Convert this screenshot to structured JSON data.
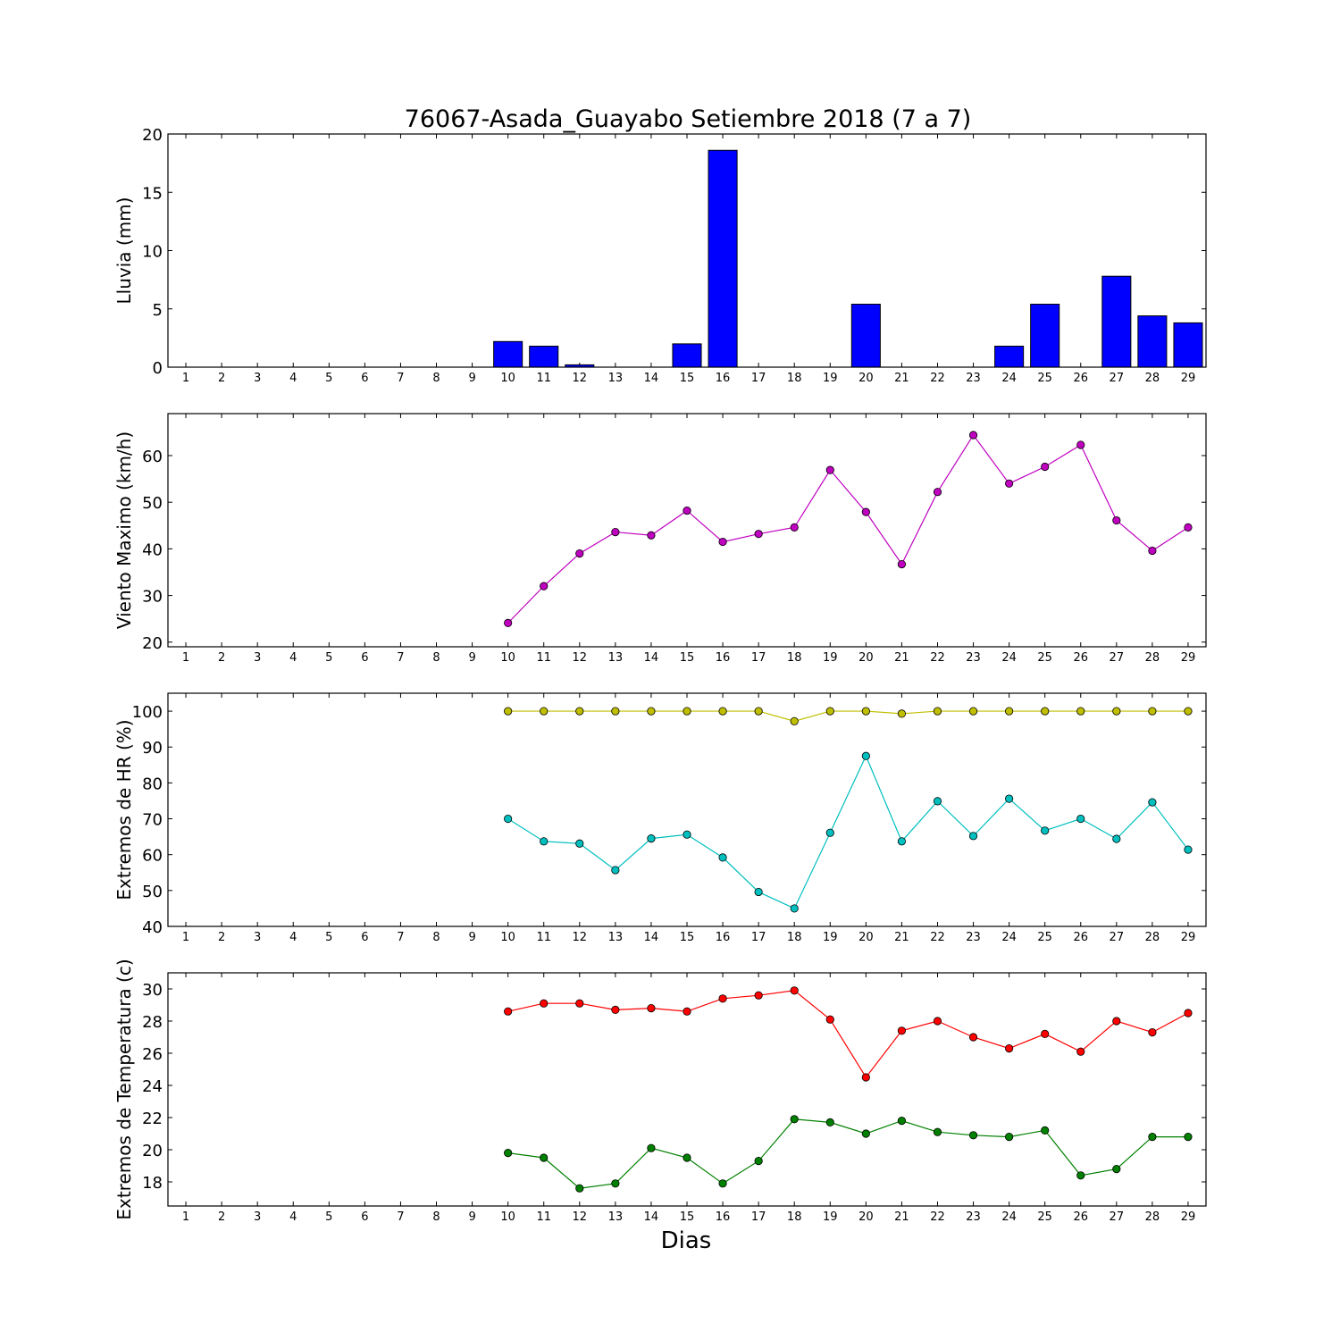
{
  "title": "76067-Asada_Guayabo Setiembre 2018  (7 a 7)",
  "xlabel": "Dias",
  "chart_data": [
    {
      "type": "bar",
      "ylabel": "Lluvia (mm)",
      "ylim": [
        0,
        20
      ],
      "yticks": [
        0,
        5,
        10,
        15,
        20
      ],
      "xlim": [
        0.5,
        29.5
      ],
      "categories": [
        1,
        2,
        3,
        4,
        5,
        6,
        7,
        8,
        9,
        10,
        11,
        12,
        13,
        14,
        15,
        16,
        17,
        18,
        19,
        20,
        21,
        22,
        23,
        24,
        25,
        26,
        27,
        28,
        29
      ],
      "series": [
        {
          "color": "#0000ff",
          "values": [
            0,
            0,
            0,
            0,
            0,
            0,
            0,
            0,
            0,
            2.2,
            1.8,
            0.2,
            0,
            0,
            2.0,
            18.6,
            0,
            0,
            0,
            5.4,
            0,
            0,
            0,
            1.8,
            5.4,
            0,
            7.8,
            4.4,
            3.8
          ]
        }
      ]
    },
    {
      "type": "line",
      "ylabel": "Viento Maximo (km/h)",
      "ylim": [
        19,
        69
      ],
      "yticks": [
        20,
        30,
        40,
        50,
        60
      ],
      "xlim": [
        0.5,
        29.5
      ],
      "categories": [
        1,
        2,
        3,
        4,
        5,
        6,
        7,
        8,
        9,
        10,
        11,
        12,
        13,
        14,
        15,
        16,
        17,
        18,
        19,
        20,
        21,
        22,
        23,
        24,
        25,
        26,
        27,
        28,
        29
      ],
      "series": [
        {
          "color": "#bf00bf",
          "x": [
            10,
            11,
            12,
            13,
            14,
            15,
            16,
            17,
            18,
            19,
            20,
            21,
            22,
            23,
            24,
            25,
            26,
            27,
            28,
            29
          ],
          "values": [
            24.1,
            32.0,
            39.0,
            43.6,
            42.9,
            48.2,
            41.5,
            43.2,
            44.6,
            56.9,
            47.9,
            36.7,
            52.2,
            64.4,
            54.0,
            57.6,
            62.3,
            46.1,
            39.6,
            44.6
          ]
        }
      ]
    },
    {
      "type": "line",
      "ylabel": "Extremos de HR (%)",
      "ylim": [
        40,
        105
      ],
      "yticks": [
        40,
        50,
        60,
        70,
        80,
        90,
        100
      ],
      "xlim": [
        0.5,
        29.5
      ],
      "categories": [
        1,
        2,
        3,
        4,
        5,
        6,
        7,
        8,
        9,
        10,
        11,
        12,
        13,
        14,
        15,
        16,
        17,
        18,
        19,
        20,
        21,
        22,
        23,
        24,
        25,
        26,
        27,
        28,
        29
      ],
      "series": [
        {
          "color": "#bfbf00",
          "x": [
            10,
            11,
            12,
            13,
            14,
            15,
            16,
            17,
            18,
            19,
            20,
            21,
            22,
            23,
            24,
            25,
            26,
            27,
            28,
            29
          ],
          "values": [
            100,
            100,
            100,
            100,
            100,
            100,
            100,
            100,
            97.2,
            100,
            100,
            99.3,
            100,
            100,
            100,
            100,
            100,
            100,
            100,
            100
          ]
        },
        {
          "color": "#00bfbf",
          "x": [
            10,
            11,
            12,
            13,
            14,
            15,
            16,
            17,
            18,
            19,
            20,
            21,
            22,
            23,
            24,
            25,
            26,
            27,
            28,
            29
          ],
          "values": [
            70.0,
            63.7,
            63.1,
            55.7,
            64.5,
            65.6,
            59.2,
            49.6,
            45.0,
            66.1,
            87.5,
            63.7,
            74.9,
            65.2,
            75.6,
            66.7,
            70.0,
            64.4,
            74.6,
            61.4
          ]
        }
      ]
    },
    {
      "type": "line",
      "ylabel": "Extremos de Temperatura (c)",
      "ylim": [
        16.5,
        31
      ],
      "yticks": [
        18,
        20,
        22,
        24,
        26,
        28,
        30
      ],
      "xlim": [
        0.5,
        29.5
      ],
      "categories": [
        1,
        2,
        3,
        4,
        5,
        6,
        7,
        8,
        9,
        10,
        11,
        12,
        13,
        14,
        15,
        16,
        17,
        18,
        19,
        20,
        21,
        22,
        23,
        24,
        25,
        26,
        27,
        28,
        29
      ],
      "series": [
        {
          "color": "#ff0000",
          "x": [
            10,
            11,
            12,
            13,
            14,
            15,
            16,
            17,
            18,
            19,
            20,
            21,
            22,
            23,
            24,
            25,
            26,
            27,
            28,
            29
          ],
          "values": [
            28.6,
            29.1,
            29.1,
            28.7,
            28.8,
            28.6,
            29.4,
            29.6,
            29.9,
            28.1,
            24.5,
            27.4,
            28.0,
            27.0,
            26.3,
            27.2,
            26.1,
            28.0,
            27.3,
            28.5
          ]
        },
        {
          "color": "#008000",
          "x": [
            10,
            11,
            12,
            13,
            14,
            15,
            16,
            17,
            18,
            19,
            20,
            21,
            22,
            23,
            24,
            25,
            26,
            27,
            28,
            29
          ],
          "values": [
            19.8,
            19.5,
            17.6,
            17.9,
            20.1,
            19.5,
            17.9,
            19.3,
            21.9,
            21.7,
            21.0,
            21.8,
            21.1,
            20.9,
            20.8,
            21.2,
            18.4,
            18.8,
            20.8,
            20.8
          ]
        }
      ]
    }
  ]
}
